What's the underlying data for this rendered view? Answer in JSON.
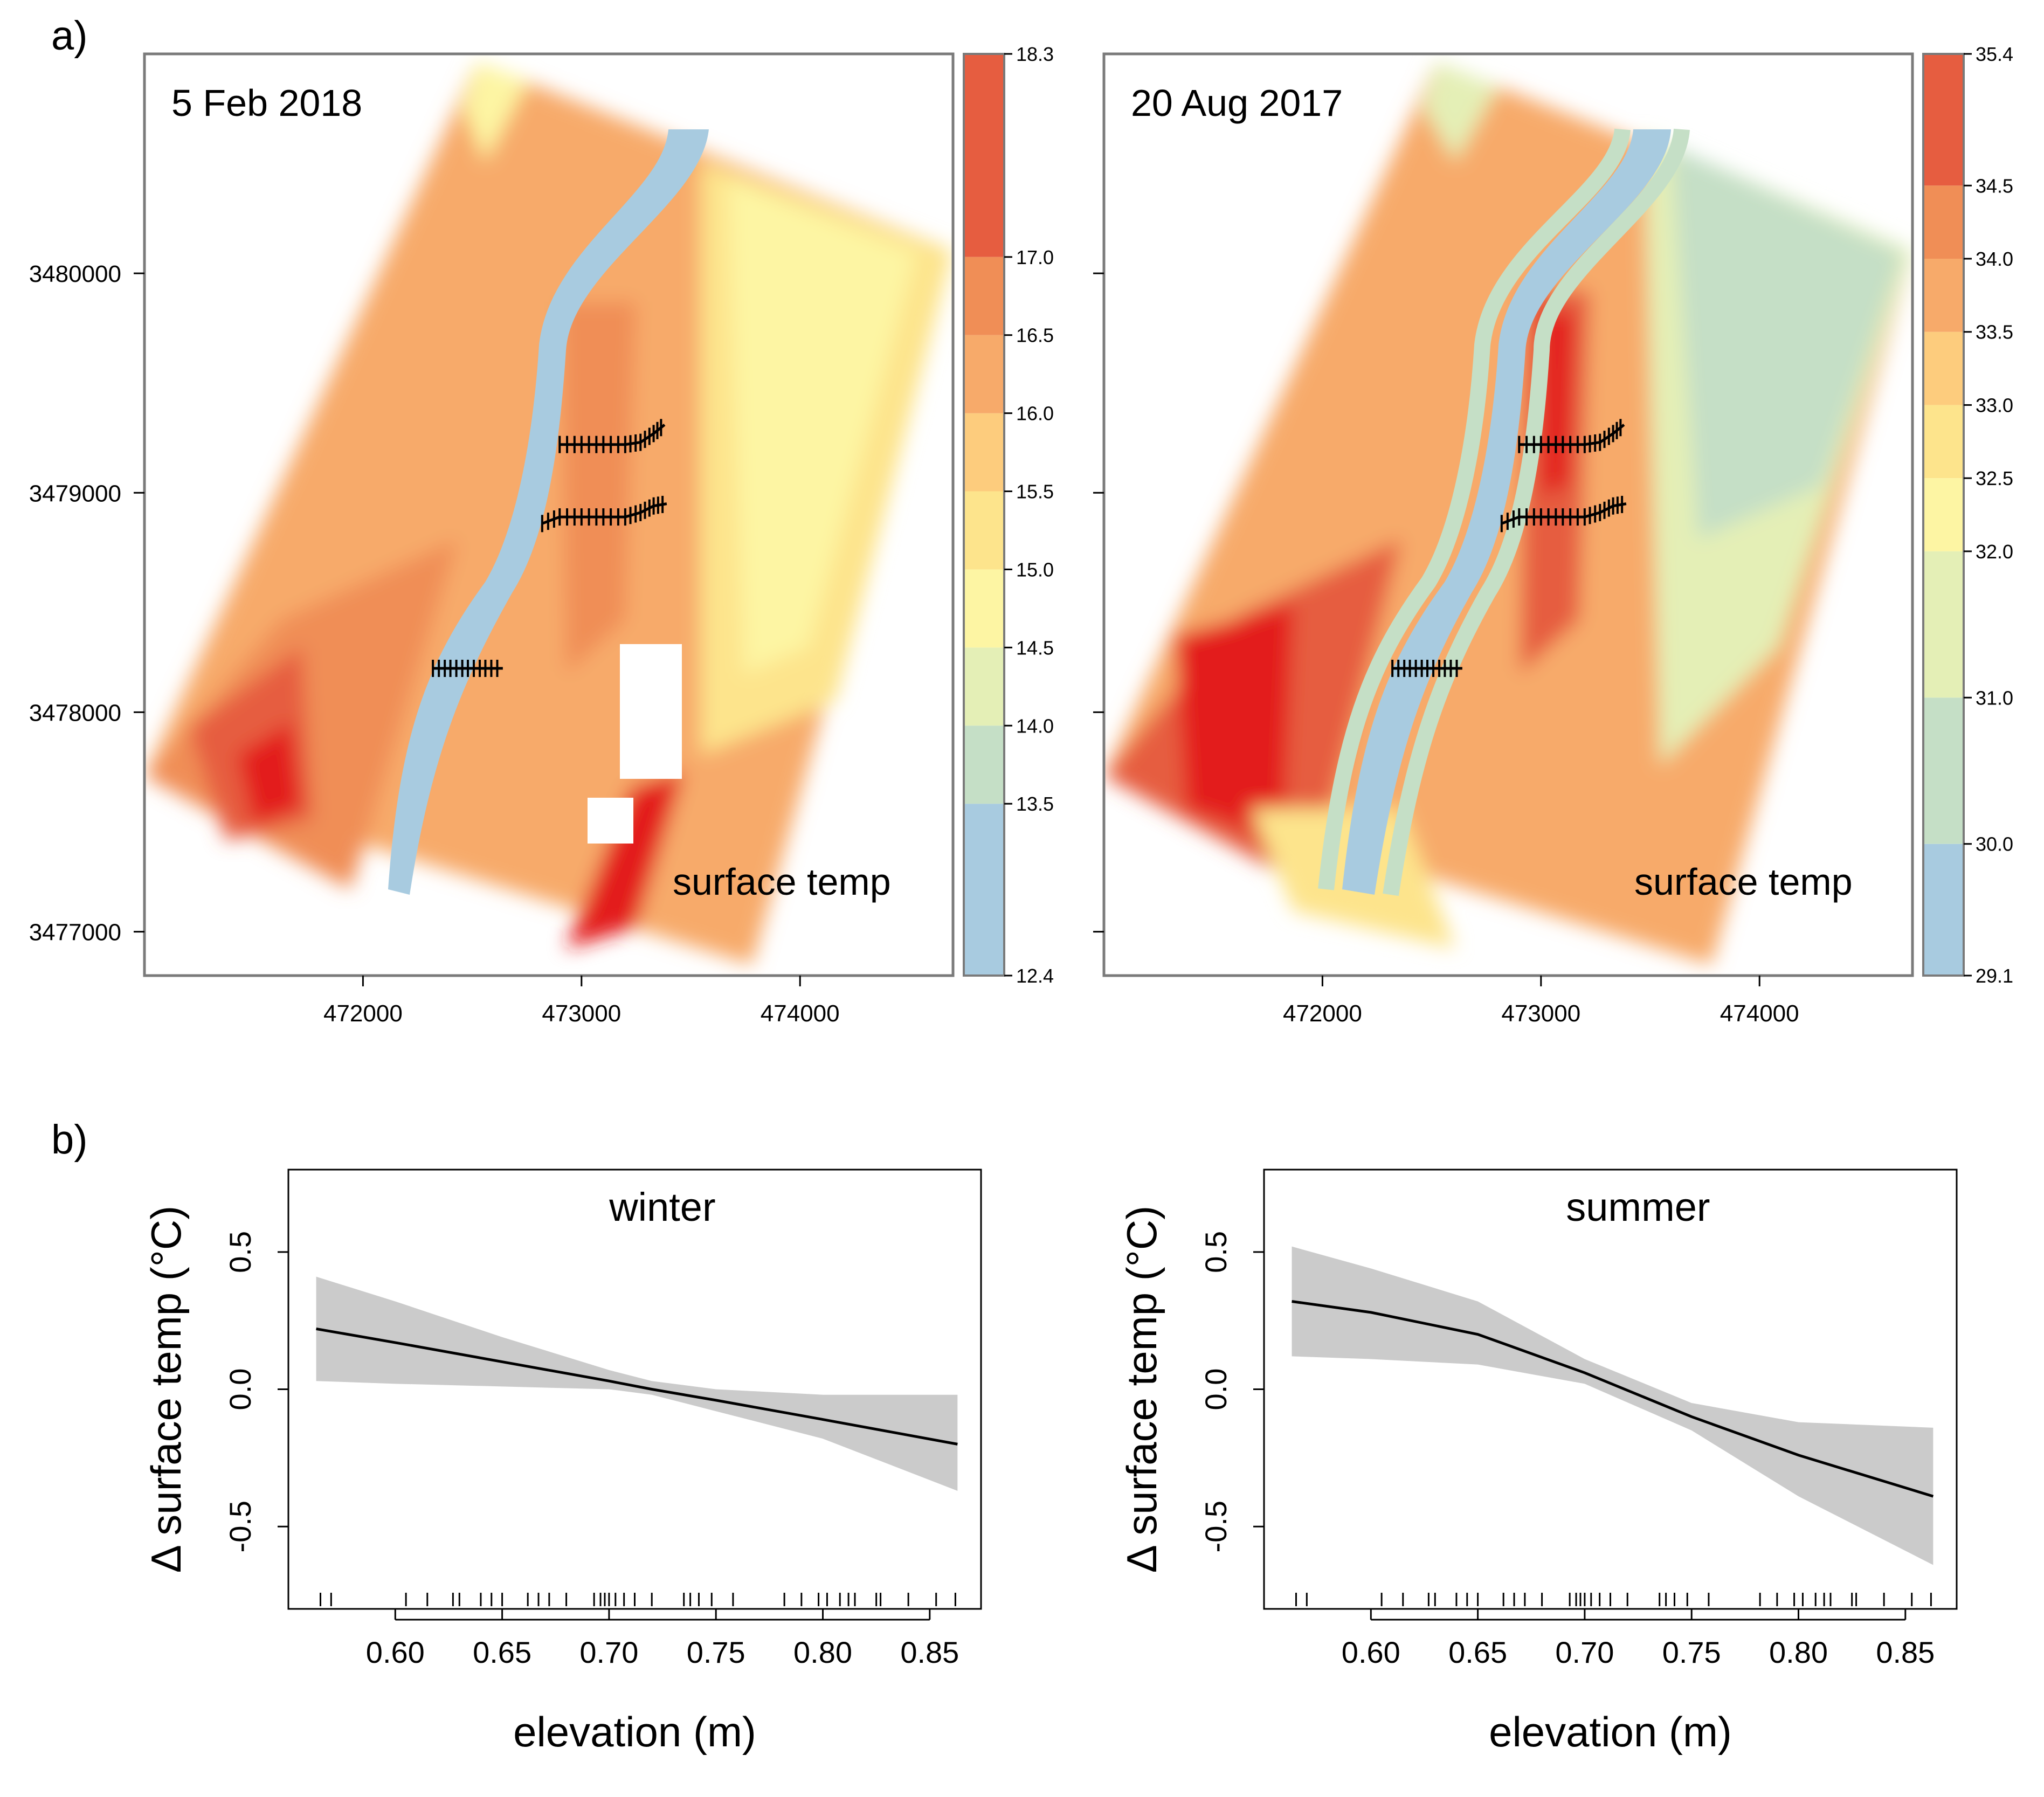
{
  "panel_labels": {
    "a": "a)",
    "b": "b)"
  },
  "colors": {
    "bands": [
      "#a8cbe0",
      "#c5dfc6",
      "#e4efb6",
      "#fdf5a3",
      "#fde48c",
      "#fdcc7d",
      "#f7aa6a",
      "#f08e56",
      "#e65d40",
      "#e31a1c"
    ],
    "shade": "#cbcbcb",
    "line": "#000000",
    "frame": "#7a7a7a"
  },
  "map_axes": {
    "x_ticks": [
      "472000",
      "473000",
      "474000"
    ],
    "y_ticks": [
      "3477000",
      "3478000",
      "3479000",
      "3480000"
    ],
    "x_tick_values": [
      472000,
      473000,
      474000
    ],
    "y_tick_values": [
      3477000,
      3478000,
      3479000,
      3480000
    ],
    "xlim": [
      471000,
      474700
    ],
    "ylim": [
      3476800,
      3481000
    ]
  },
  "maps": [
    {
      "date": "5 Feb 2018",
      "variable_label": "surface temp",
      "legend_breaks": [
        "12.4",
        "13.5",
        "14.0",
        "14.5",
        "15.0",
        "15.5",
        "16.0",
        "16.5",
        "17.0",
        "18.3"
      ]
    },
    {
      "date": "20 Aug 2017",
      "variable_label": "surface temp",
      "legend_breaks": [
        "29.1",
        "30.0",
        "31.0",
        "32.0",
        "32.5",
        "33.0",
        "33.5",
        "34.0",
        "34.5",
        "35.4"
      ]
    }
  ],
  "transects": [
    [
      [
        472900,
        3479220
      ],
      [
        473000,
        3479220
      ],
      [
        473100,
        3479220
      ],
      [
        473200,
        3479220
      ],
      [
        473270,
        3479230
      ],
      [
        473330,
        3479270
      ],
      [
        473380,
        3479310
      ]
    ],
    [
      [
        472820,
        3478860
      ],
      [
        472900,
        3478890
      ],
      [
        473000,
        3478890
      ],
      [
        473100,
        3478890
      ],
      [
        473200,
        3478890
      ],
      [
        473270,
        3478910
      ],
      [
        473330,
        3478940
      ],
      [
        473390,
        3478950
      ]
    ],
    [
      [
        472320,
        3478200
      ],
      [
        472400,
        3478200
      ],
      [
        472480,
        3478200
      ],
      [
        472560,
        3478200
      ],
      [
        472640,
        3478200
      ]
    ]
  ],
  "chart_data": [
    {
      "type": "line",
      "title": "winter",
      "xlabel": "elevation (m)",
      "ylabel": "Δ surface temp (°C)",
      "xlim": [
        0.55,
        0.874
      ],
      "ylim": [
        -0.8,
        0.8
      ],
      "x_ticks": [
        "0.60",
        "0.65",
        "0.70",
        "0.75",
        "0.80",
        "0.85"
      ],
      "x_tick_values": [
        0.6,
        0.65,
        0.7,
        0.75,
        0.8,
        0.85
      ],
      "y_ticks": [
        "-0.5",
        "0.0",
        "0.5"
      ],
      "y_tick_values": [
        -0.5,
        0.0,
        0.5
      ],
      "x": [
        0.563,
        0.6,
        0.65,
        0.7,
        0.72,
        0.75,
        0.8,
        0.863
      ],
      "fit": [
        0.22,
        0.17,
        0.1,
        0.03,
        0.0,
        -0.04,
        -0.11,
        -0.2
      ],
      "lower": [
        0.03,
        0.02,
        0.01,
        0.0,
        -0.02,
        -0.08,
        -0.18,
        -0.37
      ],
      "upper": [
        0.41,
        0.32,
        0.19,
        0.07,
        0.03,
        0.0,
        -0.02,
        -0.02
      ],
      "rug": [
        0.565,
        0.57,
        0.605,
        0.615,
        0.627,
        0.63,
        0.64,
        0.645,
        0.65,
        0.662,
        0.667,
        0.672,
        0.68,
        0.693,
        0.696,
        0.698,
        0.7,
        0.703,
        0.707,
        0.712,
        0.72,
        0.735,
        0.738,
        0.742,
        0.748,
        0.758,
        0.782,
        0.79,
        0.798,
        0.802,
        0.808,
        0.812,
        0.815,
        0.825,
        0.827,
        0.84,
        0.853,
        0.862
      ]
    },
    {
      "type": "line",
      "title": "summer",
      "xlabel": "elevation (m)",
      "ylabel": "Δ surface temp (°C)",
      "xlim": [
        0.55,
        0.874
      ],
      "ylim": [
        -0.8,
        0.8
      ],
      "x_ticks": [
        "0.60",
        "0.65",
        "0.70",
        "0.75",
        "0.80",
        "0.85"
      ],
      "x_tick_values": [
        0.6,
        0.65,
        0.7,
        0.75,
        0.8,
        0.85
      ],
      "y_ticks": [
        "-0.5",
        "0.0",
        "0.5"
      ],
      "y_tick_values": [
        -0.5,
        0.0,
        0.5
      ],
      "x": [
        0.563,
        0.6,
        0.65,
        0.7,
        0.75,
        0.8,
        0.863
      ],
      "fit": [
        0.32,
        0.28,
        0.2,
        0.06,
        -0.1,
        -0.24,
        -0.39
      ],
      "lower": [
        0.12,
        0.11,
        0.09,
        0.02,
        -0.15,
        -0.39,
        -0.64
      ],
      "upper": [
        0.52,
        0.44,
        0.32,
        0.11,
        -0.05,
        -0.12,
        -0.14
      ],
      "rug": [
        0.565,
        0.57,
        0.605,
        0.615,
        0.627,
        0.63,
        0.64,
        0.645,
        0.65,
        0.662,
        0.667,
        0.672,
        0.68,
        0.693,
        0.696,
        0.698,
        0.7,
        0.703,
        0.707,
        0.712,
        0.72,
        0.735,
        0.738,
        0.742,
        0.748,
        0.758,
        0.782,
        0.79,
        0.798,
        0.802,
        0.808,
        0.812,
        0.815,
        0.825,
        0.827,
        0.84,
        0.853,
        0.862
      ]
    }
  ]
}
